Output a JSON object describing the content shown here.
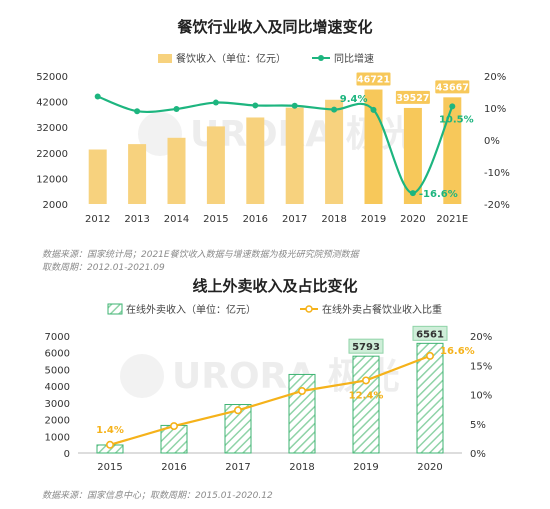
{
  "chart_data": [
    {
      "type": "bar",
      "title": "餐饮行业收入及同比增速变化",
      "categories": [
        "2012",
        "2013",
        "2014",
        "2015",
        "2016",
        "2017",
        "2018",
        "2019",
        "2020",
        "2021E"
      ],
      "series": [
        {
          "name": "餐饮收入（单位：亿元）",
          "kind": "bar",
          "axis": "left",
          "values": [
            23283,
            25392,
            27860,
            32310,
            35799,
            39644,
            42716,
            46721,
            39527,
            43667
          ],
          "color": "#f7d27e",
          "highlight_color": "#f7c85a"
        },
        {
          "name": "同比增速",
          "kind": "line",
          "axis": "right",
          "values": [
            13.6,
            9.0,
            9.7,
            11.7,
            10.8,
            10.7,
            9.5,
            9.4,
            -16.6,
            10.5
          ],
          "color": "#1db57f"
        }
      ],
      "ylim": [
        2000,
        52000
      ],
      "yticks": [
        "2000",
        "12000",
        "22000",
        "32000",
        "42000",
        "52000"
      ],
      "y2lim": [
        -20,
        20
      ],
      "y2ticks": [
        "-20%",
        "-10%",
        "0%",
        "10%",
        "20%"
      ],
      "bar_labels": [
        {
          "index": 7,
          "text": "46721"
        },
        {
          "index": 8,
          "text": "39527"
        },
        {
          "index": 9,
          "text": "43667"
        }
      ],
      "line_labels": [
        {
          "index": 7,
          "text": "9.4%"
        },
        {
          "index": 8,
          "text": "-16.6%"
        },
        {
          "index": 9,
          "text": "10.5%"
        }
      ],
      "legend_position": "top-center",
      "source": "数据来源：国家统计局；2021E餐饮收入数据与增速数据为极光研究院预测数据",
      "period": "取数周期：2012.01-2021.09"
    },
    {
      "type": "bar",
      "title": "线上外卖收入及占比变化",
      "categories": [
        "2015",
        "2016",
        "2017",
        "2018",
        "2019",
        "2020"
      ],
      "series": [
        {
          "name": "在线外卖收入（单位：亿元）",
          "kind": "bar",
          "axis": "left",
          "values": [
            480,
            1650,
            2900,
            4700,
            5793,
            6561
          ],
          "color": "#3cb371"
        },
        {
          "name": "在线外卖占餐饮业收入比重",
          "kind": "line",
          "axis": "right",
          "values": [
            1.4,
            4.6,
            7.3,
            10.6,
            12.4,
            16.6
          ],
          "color": "#f5b21a"
        }
      ],
      "ylim": [
        0,
        7000
      ],
      "yticks": [
        "0",
        "1000",
        "2000",
        "3000",
        "4000",
        "5000",
        "6000",
        "7000"
      ],
      "y2lim": [
        0,
        20
      ],
      "y2ticks": [
        "0%",
        "5%",
        "10%",
        "15%",
        "20%"
      ],
      "bar_labels": [
        {
          "index": 4,
          "text": "5793"
        },
        {
          "index": 5,
          "text": "6561"
        }
      ],
      "line_labels": [
        {
          "index": 0,
          "text": "1.4%"
        },
        {
          "index": 4,
          "text": "12.4%"
        },
        {
          "index": 5,
          "text": "16.6%"
        }
      ],
      "legend_position": "top-center",
      "source": "数据来源：国家信息中心；取数周期：2015.01-2020.12"
    }
  ],
  "watermark": "URORA 极光"
}
